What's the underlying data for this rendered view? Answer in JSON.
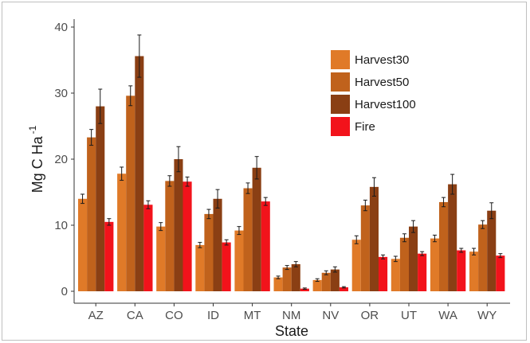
{
  "chart_data": {
    "type": "bar",
    "xlabel": "State",
    "ylabel": "Mg C Ha",
    "ylabel_superscript": "-1",
    "ylim": [
      0,
      40
    ],
    "yticks": [
      0,
      10,
      20,
      30,
      40
    ],
    "grid": false,
    "legend_position": "top-right",
    "categories": [
      "AZ",
      "CA",
      "CO",
      "ID",
      "MT",
      "NM",
      "NV",
      "OR",
      "UT",
      "WA",
      "WY"
    ],
    "series": [
      {
        "name": "Harvest30",
        "color": "#e07a28",
        "values": [
          14.0,
          17.8,
          9.8,
          7.0,
          9.2,
          2.1,
          1.7,
          7.8,
          4.9,
          8.0,
          6.0
        ],
        "errors": [
          0.7,
          1.0,
          0.6,
          0.4,
          0.6,
          0.2,
          0.2,
          0.6,
          0.4,
          0.5,
          0.5
        ]
      },
      {
        "name": "Harvest50",
        "color": "#c0621c",
        "values": [
          23.3,
          29.6,
          16.7,
          11.7,
          15.6,
          3.6,
          2.8,
          13.0,
          8.1,
          13.5,
          10.1
        ],
        "errors": [
          1.2,
          1.5,
          0.8,
          0.7,
          0.8,
          0.3,
          0.3,
          0.8,
          0.6,
          0.7,
          0.6
        ]
      },
      {
        "name": "Harvest100",
        "color": "#8a3f14",
        "values": [
          28.0,
          35.6,
          20.0,
          14.0,
          18.7,
          4.1,
          3.3,
          15.8,
          9.8,
          16.2,
          12.2
        ],
        "errors": [
          2.6,
          3.2,
          1.9,
          1.4,
          1.7,
          0.4,
          0.4,
          1.4,
          0.9,
          1.5,
          1.2
        ]
      },
      {
        "name": "Fire",
        "color": "#f2131b",
        "values": [
          10.5,
          13.1,
          16.6,
          7.4,
          13.6,
          0.4,
          0.6,
          5.2,
          5.7,
          6.2,
          5.4
        ],
        "errors": [
          0.5,
          0.6,
          0.7,
          0.4,
          0.6,
          0.1,
          0.1,
          0.3,
          0.3,
          0.3,
          0.3
        ]
      }
    ]
  }
}
